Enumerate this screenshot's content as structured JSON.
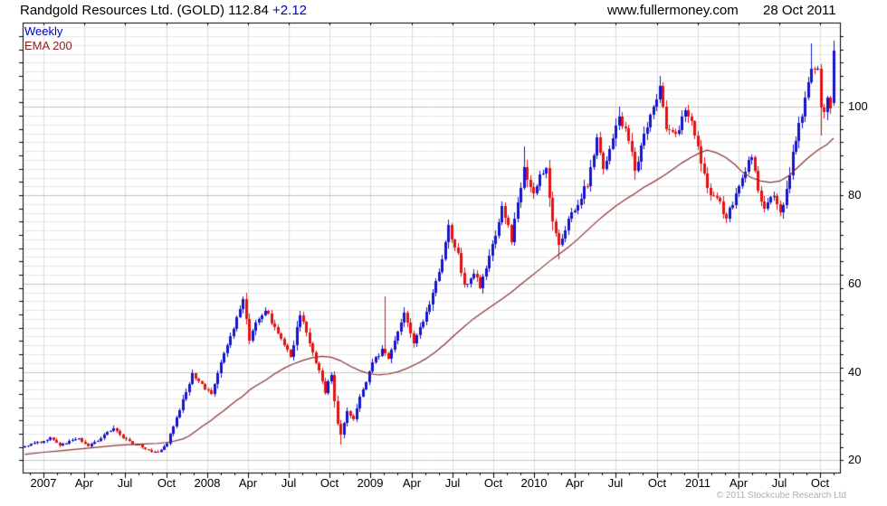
{
  "header": {
    "title_main": "Randgold Resources Ltd. (GOLD) 112.84",
    "title_change": "+2.12",
    "website": "www.fullermoney.com",
    "date": "28 Oct 2011"
  },
  "legend": {
    "series1_label": "Weekly",
    "series2_label": "EMA 200"
  },
  "footer": {
    "copyright": "© 2011 Stockcube Research Ltd"
  },
  "axes": {
    "y_tick_labels": [
      "100",
      "80",
      "60",
      "40",
      "20"
    ],
    "y_tick_values": [
      100,
      80,
      60,
      40,
      20
    ],
    "x_labels": [
      "2007",
      "Apr",
      "Jul",
      "Oct",
      "2008",
      "Apr",
      "Jul",
      "Oct",
      "2009",
      "Apr",
      "Jul",
      "Oct",
      "2010",
      "Apr",
      "Jul",
      "Oct",
      "2011",
      "Apr",
      "Jul",
      "Oct"
    ]
  },
  "colors": {
    "up_candle": "#1515cf",
    "down_candle": "#e51212",
    "ema_line": "#8b3434",
    "weekly_label": "#0000cc",
    "ema_label": "#8b2222",
    "change_text": "#0000bb",
    "grid_minor": "#e7e7e7",
    "grid_major": "#c3c3c3",
    "grid_vertical": "#dcdcdc",
    "axis": "#000000",
    "copyright_text": "#aeaeae"
  },
  "chart_data": {
    "type": "candlestick",
    "title": "Randgold Resources Ltd. (GOLD)",
    "timeframe": "weekly",
    "last_price": 112.84,
    "change": 2.12,
    "x_range": [
      "Nov 2006",
      "28 Oct 2011"
    ],
    "visible_value_range": [
      17,
      119
    ],
    "ylabel": "",
    "grid": true,
    "weeks_total": 257,
    "series": [
      {
        "name": "Weekly",
        "type": "candlestick",
        "close_anchors": [
          [
            0,
            23.2
          ],
          [
            3,
            23.8
          ],
          [
            6,
            24.3
          ],
          [
            8,
            25.1
          ],
          [
            11,
            23.4
          ],
          [
            14,
            24.2
          ],
          [
            17,
            24.8
          ],
          [
            20,
            23.2
          ],
          [
            23,
            24.4
          ],
          [
            26,
            26.2
          ],
          [
            28,
            27.2
          ],
          [
            31,
            25.2
          ],
          [
            34,
            23.8
          ],
          [
            37,
            23.0
          ],
          [
            40,
            22.0
          ],
          [
            42,
            21.7
          ],
          [
            45,
            24.0
          ],
          [
            47,
            27.5
          ],
          [
            49,
            31.5
          ],
          [
            51,
            35.5
          ],
          [
            53,
            39.8
          ],
          [
            55,
            38.0
          ],
          [
            57,
            36.4
          ],
          [
            59,
            35.2
          ],
          [
            61,
            40.0
          ],
          [
            64,
            46.0
          ],
          [
            66,
            50.0
          ],
          [
            68,
            54.5
          ],
          [
            69,
            56.3
          ],
          [
            71,
            47.0
          ],
          [
            73,
            51.5
          ],
          [
            76,
            54.3
          ],
          [
            79,
            50.0
          ],
          [
            82,
            46.5
          ],
          [
            84,
            43.2
          ],
          [
            86,
            50.0
          ],
          [
            87,
            53.0
          ],
          [
            90,
            46.5
          ],
          [
            93,
            40.0
          ],
          [
            95,
            35.5
          ],
          [
            97,
            39.5
          ],
          [
            99,
            28.0
          ],
          [
            100,
            25.5
          ],
          [
            102,
            31.0
          ],
          [
            104,
            29.5
          ],
          [
            106,
            34.5
          ],
          [
            108,
            38.0
          ],
          [
            110,
            42.5
          ],
          [
            113,
            44.8
          ],
          [
            115,
            42.8
          ],
          [
            118,
            49.5
          ],
          [
            120,
            53.3
          ],
          [
            123,
            46.8
          ],
          [
            126,
            51.5
          ],
          [
            128,
            55.5
          ],
          [
            130,
            60.0
          ],
          [
            132,
            66.0
          ],
          [
            134,
            72.5
          ],
          [
            137,
            66.5
          ],
          [
            139,
            59.5
          ],
          [
            142,
            62.5
          ],
          [
            144,
            59.5
          ],
          [
            147,
            66.0
          ],
          [
            149,
            71.5
          ],
          [
            151,
            77.5
          ],
          [
            154,
            70.0
          ],
          [
            156,
            79.0
          ],
          [
            158,
            85.5
          ],
          [
            161,
            81.0
          ],
          [
            163,
            84.5
          ],
          [
            165,
            85.8
          ],
          [
            167,
            74.5
          ],
          [
            169,
            69.0
          ],
          [
            172,
            74.0
          ],
          [
            175,
            78.5
          ],
          [
            178,
            82.5
          ],
          [
            181,
            92.5
          ],
          [
            183,
            86.0
          ],
          [
            186,
            93.0
          ],
          [
            188,
            98.5
          ],
          [
            191,
            92.5
          ],
          [
            193,
            86.0
          ],
          [
            196,
            93.0
          ],
          [
            199,
            99.5
          ],
          [
            201,
            104.5
          ],
          [
            203,
            95.5
          ],
          [
            206,
            94.5
          ],
          [
            209,
            98.5
          ],
          [
            211,
            97.5
          ],
          [
            214,
            88.0
          ],
          [
            216,
            81.5
          ],
          [
            219,
            80.0
          ],
          [
            222,
            74.5
          ],
          [
            225,
            80.5
          ],
          [
            228,
            86.0
          ],
          [
            230,
            88.3
          ],
          [
            232,
            81.5
          ],
          [
            234,
            76.5
          ],
          [
            237,
            80.5
          ],
          [
            239,
            75.5
          ],
          [
            241,
            81.0
          ],
          [
            243,
            89.5
          ],
          [
            245,
            95.5
          ],
          [
            247,
            101.5
          ],
          [
            249,
            109.5
          ],
          [
            251,
            108.5
          ],
          [
            252,
            99.5
          ],
          [
            253,
            98.0
          ],
          [
            254,
            103.0
          ],
          [
            255,
            100.7
          ],
          [
            256,
            112.84
          ]
        ],
        "candle_overrides": [
          {
            "i": 100,
            "l": 23.5
          },
          {
            "i": 114,
            "h": 57.0
          },
          {
            "i": 134,
            "h": 74.5
          },
          {
            "i": 158,
            "h": 91.0
          },
          {
            "i": 169,
            "l": 65.5
          },
          {
            "i": 181,
            "h": 94.0
          },
          {
            "i": 188,
            "h": 100.0
          },
          {
            "i": 201,
            "h": 107.0
          },
          {
            "i": 249,
            "h": 114.4
          },
          {
            "i": 252,
            "l": 93.5
          },
          {
            "i": 256,
            "o": 100.9,
            "h": 115.0,
            "l": 100.3,
            "c": 112.84
          }
        ]
      },
      {
        "name": "EMA 200",
        "type": "line",
        "points": [
          [
            0,
            21.3
          ],
          [
            6,
            21.8
          ],
          [
            12,
            22.2
          ],
          [
            18,
            22.6
          ],
          [
            24,
            23.0
          ],
          [
            30,
            23.4
          ],
          [
            36,
            23.6
          ],
          [
            42,
            23.8
          ],
          [
            46,
            24.1
          ],
          [
            50,
            24.8
          ],
          [
            52,
            25.5
          ],
          [
            54,
            26.5
          ],
          [
            56,
            27.6
          ],
          [
            59,
            29.0
          ],
          [
            61,
            30.2
          ],
          [
            63,
            31.2
          ],
          [
            65,
            32.4
          ],
          [
            67,
            33.5
          ],
          [
            69,
            34.5
          ],
          [
            71,
            35.8
          ],
          [
            73,
            36.8
          ],
          [
            76,
            38.0
          ],
          [
            79,
            39.5
          ],
          [
            82,
            40.8
          ],
          [
            85,
            41.8
          ],
          [
            88,
            42.6
          ],
          [
            91,
            43.2
          ],
          [
            94,
            43.5
          ],
          [
            97,
            43.3
          ],
          [
            100,
            42.5
          ],
          [
            103,
            41.3
          ],
          [
            106,
            40.3
          ],
          [
            109,
            39.6
          ],
          [
            112,
            39.3
          ],
          [
            115,
            39.5
          ],
          [
            118,
            40.0
          ],
          [
            121,
            40.8
          ],
          [
            124,
            41.8
          ],
          [
            127,
            43.0
          ],
          [
            130,
            44.5
          ],
          [
            133,
            46.3
          ],
          [
            136,
            48.3
          ],
          [
            139,
            50.2
          ],
          [
            142,
            52.0
          ],
          [
            145,
            53.5
          ],
          [
            148,
            55.0
          ],
          [
            151,
            56.5
          ],
          [
            154,
            58.0
          ],
          [
            157,
            59.8
          ],
          [
            160,
            61.5
          ],
          [
            163,
            63.2
          ],
          [
            166,
            65.0
          ],
          [
            169,
            66.6
          ],
          [
            172,
            68.2
          ],
          [
            175,
            70.0
          ],
          [
            178,
            72.0
          ],
          [
            181,
            74.0
          ],
          [
            184,
            75.8
          ],
          [
            187,
            77.5
          ],
          [
            190,
            79.0
          ],
          [
            193,
            80.3
          ],
          [
            196,
            81.8
          ],
          [
            199,
            83.0
          ],
          [
            202,
            84.3
          ],
          [
            205,
            85.8
          ],
          [
            208,
            87.3
          ],
          [
            211,
            88.6
          ],
          [
            214,
            89.7
          ],
          [
            216,
            90.2
          ],
          [
            219,
            89.6
          ],
          [
            222,
            88.5
          ],
          [
            225,
            86.8
          ],
          [
            227,
            85.3
          ],
          [
            230,
            84.0
          ],
          [
            233,
            83.2
          ],
          [
            236,
            82.9
          ],
          [
            239,
            83.2
          ],
          [
            242,
            84.5
          ],
          [
            245,
            86.5
          ],
          [
            248,
            88.5
          ],
          [
            251,
            90.2
          ],
          [
            254,
            91.5
          ],
          [
            256,
            92.9
          ]
        ]
      }
    ]
  }
}
